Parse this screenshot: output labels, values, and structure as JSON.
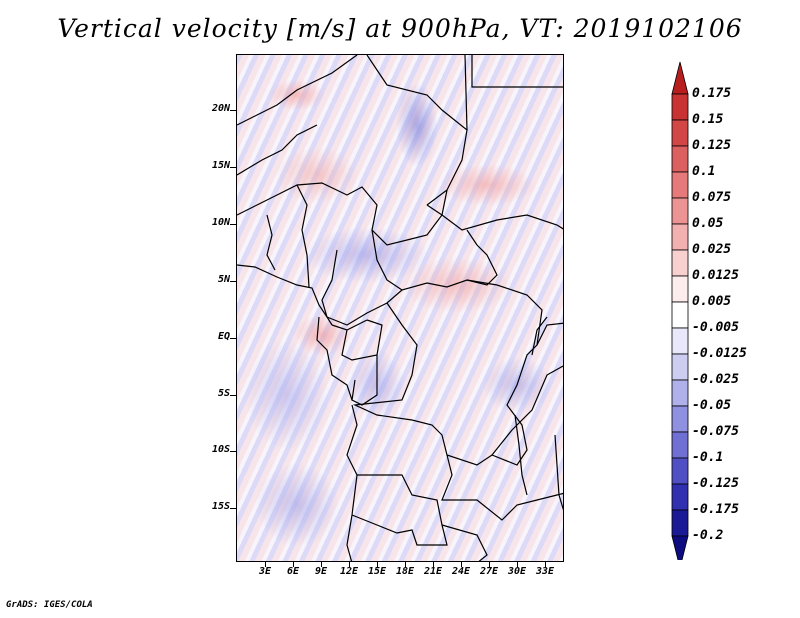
{
  "title": "Vertical velocity [m/s] at 900hPa, VT: 2019102106",
  "credit": "GrADS: IGES/COLA",
  "map": {
    "region": "Central Africa",
    "lon_range": [
      0,
      35
    ],
    "lat_range": [
      -20,
      25
    ],
    "lat_ticks": [
      "20N",
      "15N",
      "10N",
      "5N",
      "EQ",
      "5S",
      "10S",
      "15S"
    ],
    "lon_ticks": [
      "3E",
      "6E",
      "9E",
      "12E",
      "15E",
      "18E",
      "21E",
      "24E",
      "27E",
      "30E",
      "33E"
    ]
  },
  "colorbar": {
    "labels": [
      "0.175",
      "0.15",
      "0.125",
      "0.1",
      "0.075",
      "0.05",
      "0.025",
      "0.0125",
      "0.005",
      "-0.005",
      "-0.0125",
      "-0.025",
      "-0.05",
      "-0.075",
      "-0.1",
      "-0.125",
      "-0.175",
      "-0.2"
    ],
    "colors": [
      "#b81e1e",
      "#c83232",
      "#d24646",
      "#dc6060",
      "#e67a7a",
      "#ec9494",
      "#f2b0b0",
      "#f8d0d0",
      "#fdecec",
      "#ffffff",
      "#e8e8fa",
      "#cdcdf2",
      "#b0b0ea",
      "#9090e0",
      "#7070d4",
      "#5050c4",
      "#3030b0",
      "#1a1a96",
      "#0c0c80"
    ]
  }
}
